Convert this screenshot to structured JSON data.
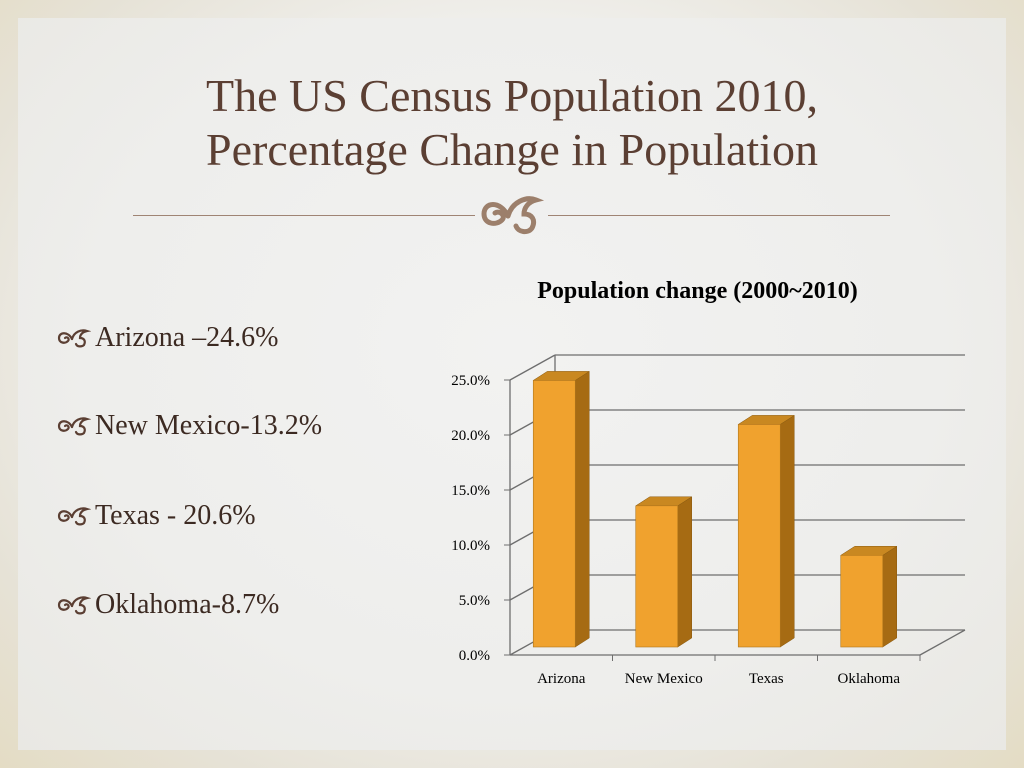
{
  "slide": {
    "title_line1": "The US Census Population 2010,",
    "title_line2": "Percentage Change in Population",
    "ornament_icon": "fleuron-ornament-icon",
    "bullet_icon": "fleuron-bullet-icon",
    "bullets": [
      "Arizona –24.6%",
      "New Mexico-13.2%",
      "Texas - 20.6%",
      "Oklahoma-8.7%"
    ],
    "colors": {
      "title": "#5b3f33",
      "bar_front": "#f0a22e",
      "bar_side": "#a66b13",
      "bar_top": "#c98821",
      "ornament": "#9c7f6b"
    }
  },
  "chart_data": {
    "type": "bar",
    "title": "Population change (2000~2010)",
    "categories": [
      "Arizona",
      "New Mexico",
      "Texas",
      "Oklahoma"
    ],
    "values": [
      24.6,
      13.2,
      20.6,
      8.7
    ],
    "ylim": [
      0,
      25
    ],
    "yticks": [
      "0.0%",
      "5.0%",
      "10.0%",
      "15.0%",
      "20.0%",
      "25.0%"
    ],
    "xlabel": "",
    "ylabel": "",
    "grid": true,
    "legend": "none",
    "style": "3d-column"
  }
}
